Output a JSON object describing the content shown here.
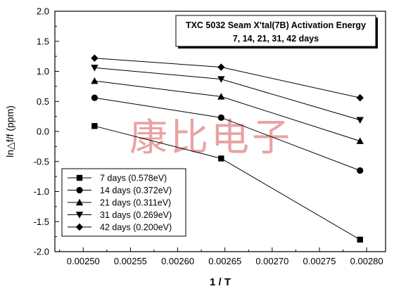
{
  "chart_data": {
    "type": "line",
    "title_lines": [
      "TXC 5032 Seam X'tal(7B) Activation Energy",
      "7, 14, 21, 31, 42 days"
    ],
    "xlabel": "1 / T",
    "ylabel": "ln△f/f (ppm)",
    "xlim": [
      0.00247,
      0.00282
    ],
    "ylim": [
      -2.0,
      2.0
    ],
    "x_ticks": [
      "0.00250",
      "0.00255",
      "0.00260",
      "0.00265",
      "0.00270",
      "0.00275",
      "0.00280"
    ],
    "y_ticks": [
      "2.0",
      "1.5",
      "1.0",
      "0.5",
      "0.0",
      "-0.5",
      "-1.0",
      "-1.5",
      "-2.0"
    ],
    "x": [
      0.002512,
      0.002646,
      0.002793
    ],
    "grid": false,
    "legend_position": "bottom-left",
    "series": [
      {
        "name": "7 days (0.578eV)",
        "marker": "square",
        "values": [
          0.09,
          -0.45,
          -1.8
        ]
      },
      {
        "name": "14 days (0.372eV)",
        "marker": "circle",
        "values": [
          0.56,
          0.23,
          -0.65
        ]
      },
      {
        "name": "21 days (0.311eV)",
        "marker": "triangle-up",
        "values": [
          0.84,
          0.58,
          -0.16
        ]
      },
      {
        "name": "31 days (0.269eV)",
        "marker": "triangle-down",
        "values": [
          1.06,
          0.87,
          0.19
        ]
      },
      {
        "name": "42 days (0.200eV)",
        "marker": "diamond",
        "values": [
          1.22,
          1.07,
          0.56
        ]
      }
    ],
    "watermark": "康比电子",
    "colors": {
      "line": "#000000",
      "watermark": "#e9a3a3"
    }
  }
}
